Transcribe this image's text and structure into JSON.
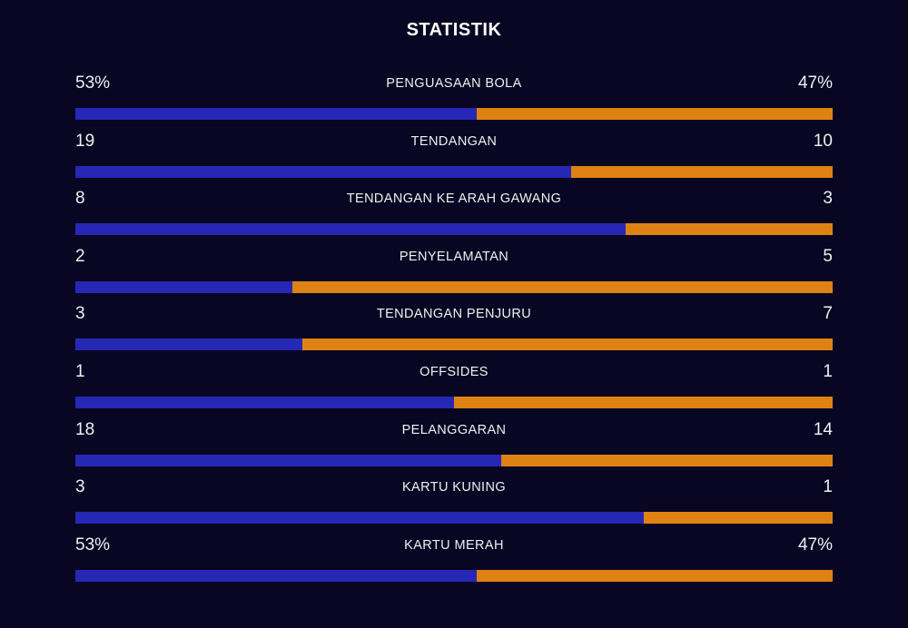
{
  "title": "STATISTIK",
  "colors": {
    "background": "#080622",
    "home": "#2727b6",
    "away": "#de8213"
  },
  "stats": [
    {
      "label": "PENGUASAAN BOLA",
      "left": "53%",
      "right": "47%",
      "left_share": 0.53
    },
    {
      "label": "TENDANGAN",
      "left": "19",
      "right": "10",
      "left_share": 0.655
    },
    {
      "label": "TENDANGAN KE ARAH GAWANG",
      "left": "8",
      "right": "3",
      "left_share": 0.727
    },
    {
      "label": "PENYELAMATAN",
      "left": "2",
      "right": "5",
      "left_share": 0.286
    },
    {
      "label": "TENDANGAN PENJURU",
      "left": "3",
      "right": "7",
      "left_share": 0.3
    },
    {
      "label": "OFFSIDES",
      "left": "1",
      "right": "1",
      "left_share": 0.5
    },
    {
      "label": "PELANGGARAN",
      "left": "18",
      "right": "14",
      "left_share": 0.5625
    },
    {
      "label": "KARTU KUNING",
      "left": "3",
      "right": "1",
      "left_share": 0.75
    },
    {
      "label": "KARTU MERAH",
      "left": "53%",
      "right": "47%",
      "left_share": 0.53
    }
  ]
}
